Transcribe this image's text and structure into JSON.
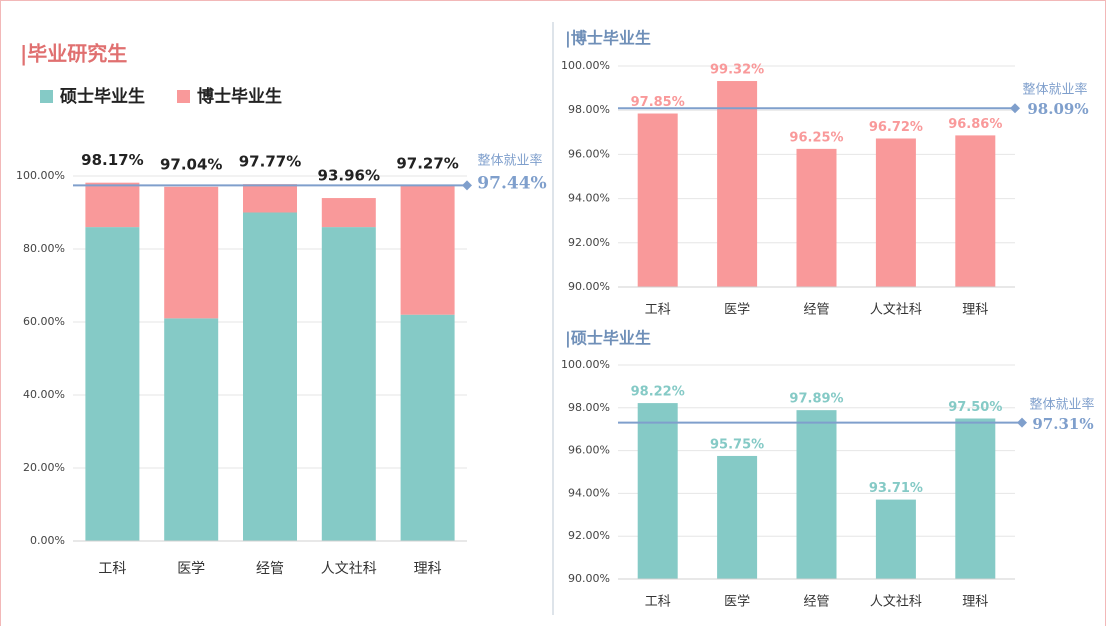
{
  "chart_data": [
    {
      "type": "stacked_bar",
      "title": "|毕业研究生",
      "categories": [
        "工科",
        "医学",
        "经管",
        "人文社科",
        "理科"
      ],
      "series": [
        {
          "name": "硕士毕业生",
          "color": "#85cac6",
          "values": [
            86,
            61,
            90,
            86,
            62
          ]
        },
        {
          "name": "博士毕业生",
          "color": "#f9999a",
          "values": [
            12.17,
            36.04,
            7.77,
            7.96,
            35.27
          ]
        }
      ],
      "totals": [
        98.17,
        97.04,
        97.77,
        93.96,
        97.27
      ],
      "total_labels": [
        "98.17%",
        "97.04%",
        "97.77%",
        "93.96%",
        "97.27%"
      ],
      "reference": {
        "label": "整体就业率",
        "value": 97.44,
        "value_label": "97.44%",
        "color": "#7f9fcc"
      },
      "ylim": [
        0,
        100
      ],
      "yticks": [
        {
          "value": 0,
          "label": "0.00%"
        },
        {
          "value": 20,
          "label": "20.00%"
        },
        {
          "value": 40,
          "label": "40.00%"
        },
        {
          "value": 60,
          "label": "60.00%"
        },
        {
          "value": 80,
          "label": "80.00%"
        },
        {
          "value": 100,
          "label": "100.00%"
        }
      ],
      "grid": true
    },
    {
      "type": "bar",
      "title": "|博士毕业生",
      "categories": [
        "工科",
        "医学",
        "经管",
        "人文社科",
        "理科"
      ],
      "values": [
        97.85,
        99.32,
        96.25,
        96.72,
        96.86
      ],
      "value_labels": [
        "97.85%",
        "99.32%",
        "96.25%",
        "96.72%",
        "96.86%"
      ],
      "color": "#f9999a",
      "reference": {
        "label": "整体就业率",
        "value": 98.09,
        "value_label": "98.09%",
        "color": "#7f9fcc"
      },
      "ylim": [
        90,
        100
      ],
      "yticks": [
        {
          "value": 90,
          "label": "90.00%"
        },
        {
          "value": 92,
          "label": "92.00%"
        },
        {
          "value": 94,
          "label": "94.00%"
        },
        {
          "value": 96,
          "label": "96.00%"
        },
        {
          "value": 98,
          "label": "98.00%"
        },
        {
          "value": 100,
          "label": "100.00%"
        }
      ],
      "grid": true
    },
    {
      "type": "bar",
      "title": "|硕士毕业生",
      "categories": [
        "工科",
        "医学",
        "经管",
        "人文社科",
        "理科"
      ],
      "values": [
        98.22,
        95.75,
        97.89,
        93.71,
        97.5
      ],
      "value_labels": [
        "98.22%",
        "95.75%",
        "97.89%",
        "93.71%",
        "97.50%"
      ],
      "color": "#85cac6",
      "reference": {
        "label": "整体就业率",
        "value": 97.31,
        "value_label": "97.31%",
        "color": "#7f9fcc"
      },
      "ylim": [
        90,
        100
      ],
      "yticks": [
        {
          "value": 90,
          "label": "90.00%"
        },
        {
          "value": 92,
          "label": "92.00%"
        },
        {
          "value": 94,
          "label": "94.00%"
        },
        {
          "value": 96,
          "label": "96.00%"
        },
        {
          "value": 98,
          "label": "98.00%"
        },
        {
          "value": 100,
          "label": "100.00%"
        }
      ],
      "grid": true
    }
  ]
}
